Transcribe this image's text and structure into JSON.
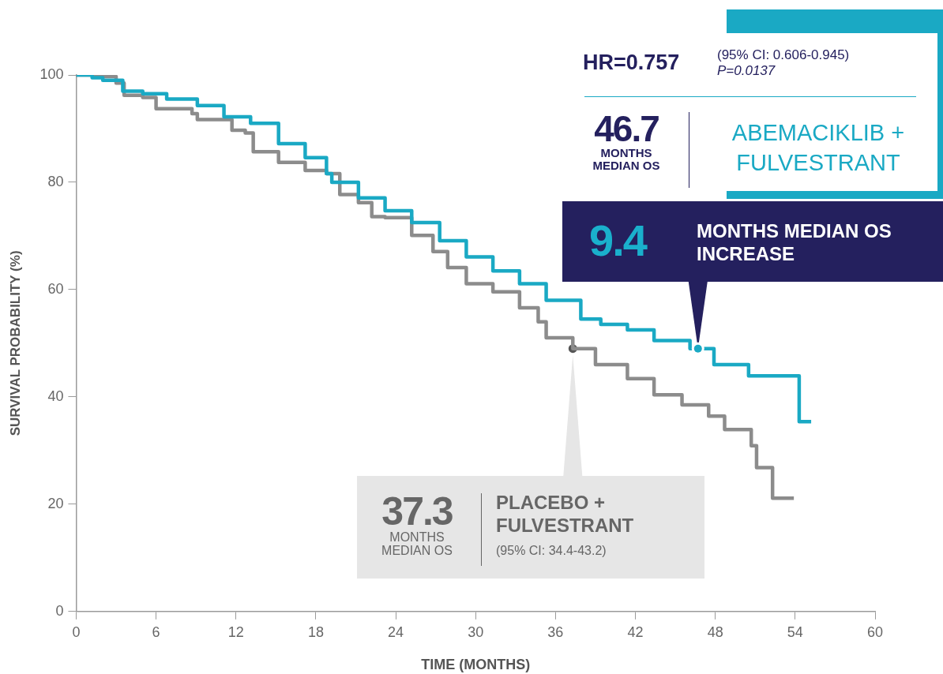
{
  "chart_data": {
    "type": "step",
    "xlabel": "TIME (MONTHS)",
    "ylabel": "SURVIVAL PROBABILITY (%)",
    "xlim": [
      0,
      60
    ],
    "xticks": [
      0,
      6,
      12,
      18,
      24,
      30,
      36,
      42,
      48,
      54,
      60
    ],
    "ylim": [
      0,
      100
    ],
    "yticks": [
      0,
      20,
      40,
      60,
      80,
      100
    ],
    "grid": false,
    "marker": "none",
    "line_style": "solid",
    "series": [
      {
        "name": "ABEMACIKLIB + FULVESTRANT",
        "color": "#1aa9c4",
        "x": [
          0,
          1.2,
          2,
          3.5,
          5,
          6.8,
          9.1,
          11.1,
          13.1,
          15.2,
          17.2,
          18.8,
          19.2,
          21.2,
          23.2,
          25.2,
          27.3,
          29.3,
          31.3,
          33.3,
          35.3,
          37.9,
          39.4,
          41.4,
          43.4,
          46.1,
          47.9,
          50.5,
          54.3,
          55.2
        ],
        "values": [
          100,
          99.5,
          99,
          97,
          96.5,
          95.5,
          94.3,
          92.2,
          91,
          87.2,
          84.6,
          81.6,
          80,
          77.1,
          74.7,
          72.5,
          69.1,
          66.1,
          63.5,
          61.1,
          58,
          54.5,
          53.5,
          52.5,
          50.5,
          49,
          46,
          43.9,
          35.4,
          35.4
        ]
      },
      {
        "name": "PLACEBO + FULVESTRANT",
        "color": "#8c8c8c",
        "x": [
          0,
          2,
          3,
          3.6,
          5,
          6,
          8.7,
          9.1,
          11.1,
          11.7,
          12.7,
          13.3,
          15.2,
          17.2,
          18.8,
          19.8,
          21.2,
          22.2,
          23.2,
          25.2,
          26.8,
          27.9,
          29.3,
          31.3,
          33.3,
          34.7,
          35.3,
          37.3,
          39,
          41.4,
          43.4,
          45.5,
          47.5,
          48.7,
          50.7,
          51.1,
          52.3,
          53.9
        ],
        "values": [
          100,
          99.7,
          98.5,
          96.2,
          95.8,
          93.7,
          92.8,
          91.7,
          91.7,
          89.7,
          89.2,
          85.7,
          83.7,
          82.2,
          81.6,
          77.7,
          76.2,
          73.6,
          73.4,
          70.1,
          67.1,
          64.1,
          61.1,
          59.6,
          56.6,
          54,
          51,
          49,
          46,
          43.4,
          40.4,
          38.5,
          36.4,
          33.9,
          30.9,
          26.8,
          21.1,
          21.1
        ]
      },
      {
        "type": "scatter",
        "marker": "circle",
        "color": "#555555",
        "x": [
          37.3
        ],
        "values": [
          49
        ]
      }
    ],
    "annotations": [
      "HR=0.757",
      "(95% CI: 0.606-0.945)",
      "P=0.0137",
      "46.7 MONTHS MEDIAN OS",
      {
        "text": "9.4 MONTHS MEDIAN OS INCREASE",
        "x": 46.7,
        "y": 49
      },
      "37.3 MONTHS MEDIAN OS",
      "(95% CI: 34.4-43.2)"
    ]
  }
}
